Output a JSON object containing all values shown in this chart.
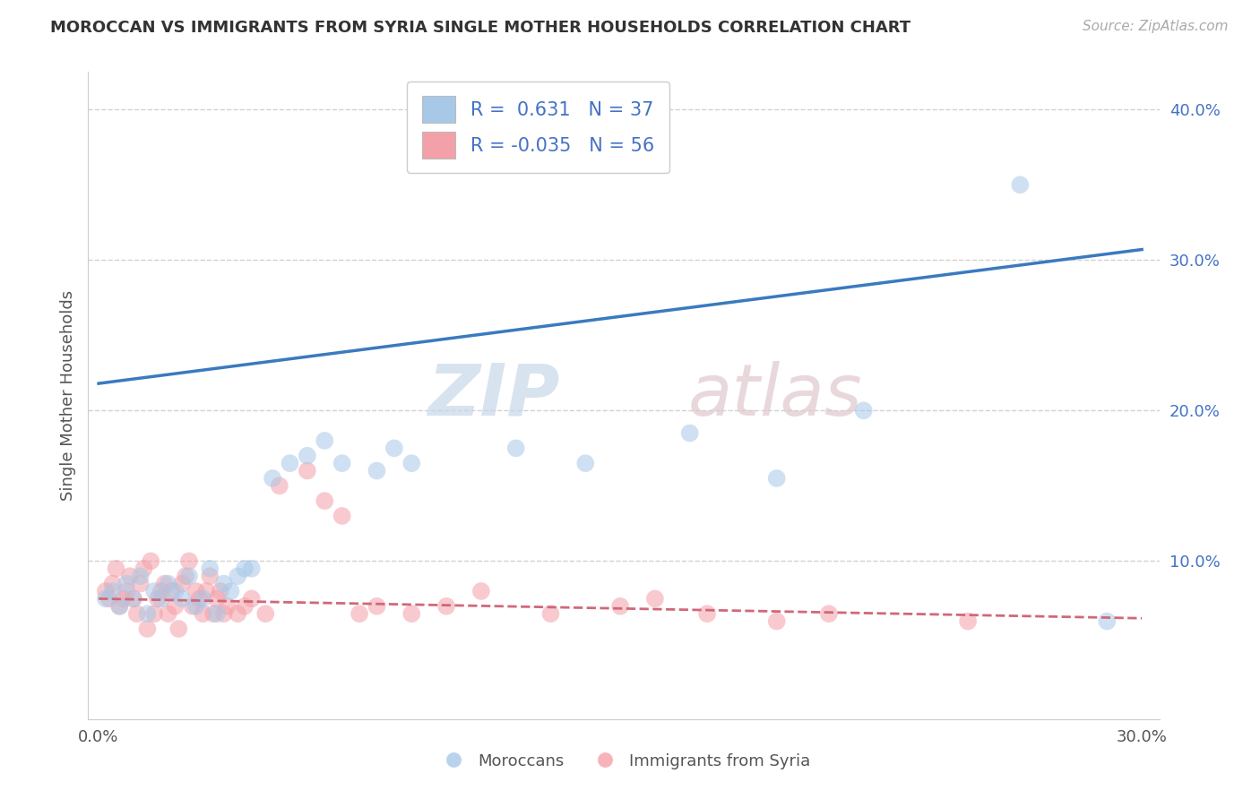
{
  "title": "MOROCCAN VS IMMIGRANTS FROM SYRIA SINGLE MOTHER HOUSEHOLDS CORRELATION CHART",
  "source": "Source: ZipAtlas.com",
  "ylabel": "Single Mother Households",
  "xlim": [
    -0.003,
    0.305
  ],
  "ylim": [
    -0.005,
    0.425
  ],
  "x_ticks": [
    0.0,
    0.3
  ],
  "y_ticks": [
    0.1,
    0.2,
    0.3,
    0.4
  ],
  "R_moroccan": 0.631,
  "N_moroccan": 37,
  "R_syria": -0.035,
  "N_syria": 56,
  "blue_color": "#a8c8e8",
  "pink_color": "#f4a0a8",
  "blue_line_color": "#3a7abf",
  "pink_line_color": "#d06878",
  "legend_items": [
    "Moroccans",
    "Immigrants from Syria"
  ],
  "blue_line_x0": 0.0,
  "blue_line_y0": 0.218,
  "blue_line_x1": 0.3,
  "blue_line_y1": 0.307,
  "pink_line_x0": 0.0,
  "pink_line_y0": 0.075,
  "pink_line_x1": 0.3,
  "pink_line_y1": 0.062,
  "moroccan_x": [
    0.002,
    0.004,
    0.006,
    0.008,
    0.01,
    0.012,
    0.014,
    0.016,
    0.018,
    0.02,
    0.022,
    0.024,
    0.026,
    0.028,
    0.03,
    0.032,
    0.034,
    0.036,
    0.038,
    0.04,
    0.042,
    0.044,
    0.05,
    0.055,
    0.06,
    0.065,
    0.07,
    0.08,
    0.085,
    0.09,
    0.12,
    0.14,
    0.17,
    0.195,
    0.22,
    0.265,
    0.29
  ],
  "moroccan_y": [
    0.075,
    0.08,
    0.07,
    0.085,
    0.075,
    0.09,
    0.065,
    0.08,
    0.075,
    0.085,
    0.08,
    0.075,
    0.09,
    0.07,
    0.075,
    0.095,
    0.065,
    0.085,
    0.08,
    0.09,
    0.095,
    0.095,
    0.155,
    0.165,
    0.17,
    0.18,
    0.165,
    0.16,
    0.175,
    0.165,
    0.175,
    0.165,
    0.185,
    0.155,
    0.2,
    0.35,
    0.06
  ],
  "syria_x": [
    0.002,
    0.003,
    0.004,
    0.005,
    0.006,
    0.007,
    0.008,
    0.009,
    0.01,
    0.011,
    0.012,
    0.013,
    0.014,
    0.015,
    0.016,
    0.017,
    0.018,
    0.019,
    0.02,
    0.021,
    0.022,
    0.023,
    0.024,
    0.025,
    0.026,
    0.027,
    0.028,
    0.029,
    0.03,
    0.031,
    0.032,
    0.033,
    0.034,
    0.035,
    0.036,
    0.037,
    0.04,
    0.042,
    0.044,
    0.048,
    0.052,
    0.06,
    0.065,
    0.07,
    0.075,
    0.08,
    0.09,
    0.1,
    0.11,
    0.13,
    0.15,
    0.16,
    0.175,
    0.195,
    0.21,
    0.25
  ],
  "syria_y": [
    0.08,
    0.075,
    0.085,
    0.095,
    0.07,
    0.075,
    0.08,
    0.09,
    0.075,
    0.065,
    0.085,
    0.095,
    0.055,
    0.1,
    0.065,
    0.075,
    0.08,
    0.085,
    0.065,
    0.08,
    0.07,
    0.055,
    0.085,
    0.09,
    0.1,
    0.07,
    0.08,
    0.075,
    0.065,
    0.08,
    0.09,
    0.065,
    0.075,
    0.08,
    0.065,
    0.07,
    0.065,
    0.07,
    0.075,
    0.065,
    0.15,
    0.16,
    0.14,
    0.13,
    0.065,
    0.07,
    0.065,
    0.07,
    0.08,
    0.065,
    0.07,
    0.075,
    0.065,
    0.06,
    0.065,
    0.06
  ]
}
